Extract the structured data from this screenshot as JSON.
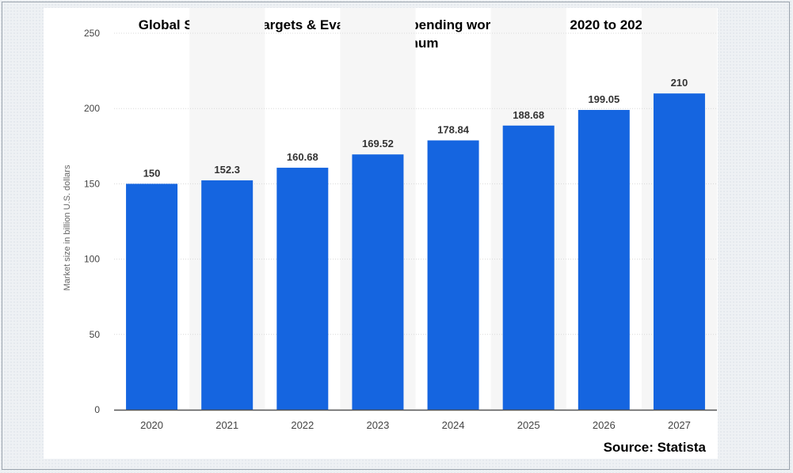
{
  "title_line1": "Global Sputtering Targets & Evaporation Spending worldwide from 2020 to 2027,",
  "title_line2": "by Aluminum",
  "source": "Source: Statista",
  "colors": {
    "bar": "#1565e0",
    "band": "#f6f6f6",
    "grid": "#d9d9d9",
    "axis": "#555555",
    "tick": "#444444"
  },
  "chart_data": {
    "type": "bar",
    "title": "Global Sputtering Targets & Evaporation Spending worldwide from 2020 to 2027, by Aluminum",
    "xlabel": "",
    "ylabel": "Market size in billion U.S. dollars",
    "categories": [
      "2020",
      "2021",
      "2022",
      "2023",
      "2024",
      "2025",
      "2026",
      "2027"
    ],
    "values": [
      150,
      152.3,
      160.68,
      169.52,
      178.84,
      188.68,
      199.05,
      210
    ],
    "value_labels": [
      "150",
      "152.3",
      "160.68",
      "169.52",
      "178.84",
      "188.68",
      "199.05",
      "210"
    ],
    "ylim": [
      0,
      250
    ],
    "yticks": [
      0,
      50,
      100,
      150,
      200,
      250
    ],
    "ytick_labels": [
      "0",
      "50",
      "100",
      "150",
      "200",
      "250"
    ],
    "grid": true,
    "legend": "none"
  }
}
